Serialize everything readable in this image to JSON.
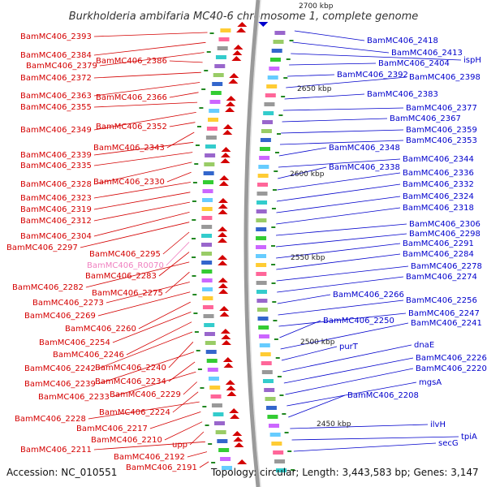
{
  "title": "Burkholderia ambifaria MC40-6 chromosome 1, complete genome",
  "footer": {
    "accession": "Accession: NC_010551",
    "summary": "Topology: circular; Length: 3,443,583 bp; Genes: 3,147"
  },
  "colors": {
    "minus_strand": "#d40000",
    "plus_strand": "#0000cc",
    "rna": "#f080c0",
    "backbone": "#888888"
  },
  "ticks": [
    "2700 kbp",
    "2650 kbp",
    "2600 kbp",
    "2550 kbp",
    "2500 kbp",
    "2450 kbp"
  ],
  "left_labels": [
    "BamMC406_2393",
    "BamMC406_2384",
    "BamMC406_2379",
    "BamMC406_2386",
    "BamMC406_2372",
    "BamMC406_2363",
    "BamMC406_2366",
    "BamMC406_2355",
    "BamMC406_2349",
    "BamMC406_2352",
    "BamMC406_2343",
    "BamMC406_2339",
    "BamMC406_2335",
    "BamMC406_2328",
    "BamMC406_2330",
    "BamMC406_2323",
    "BamMC406_2319",
    "BamMC406_2312",
    "BamMC406_2304",
    "BamMC406_2297",
    "BamMC406_2295",
    "BamMC406_R0070",
    "BamMC406_2283",
    "BamMC406_2282",
    "BamMC406_2275",
    "BamMC406_2273",
    "BamMC406_2269",
    "BamMC406_2260",
    "BamMC406_2254",
    "BamMC406_2246",
    "BamMC406_2242",
    "BamMC406_2240",
    "BamMC406_2239",
    "BamMC406_2234",
    "BamMC406_2233",
    "BamMC406_2229",
    "BamMC406_2224",
    "BamMC406_2228",
    "BamMC406_2217",
    "BamMC406_2210",
    "upp",
    "BamMC406_2211",
    "BamMC406_2192",
    "BamMC406_2191"
  ],
  "right_labels": [
    "BamMC406_2418",
    "BamMC406_2413",
    "ispH",
    "BamMC406_2404",
    "BamMC406_2392",
    "BamMC406_2398",
    "BamMC406_2383",
    "BamMC406_2377",
    "BamMC406_2367",
    "BamMC406_2359",
    "BamMC406_2353",
    "BamMC406_2348",
    "BamMC406_2344",
    "BamMC406_2338",
    "BamMC406_2336",
    "BamMC406_2332",
    "BamMC406_2324",
    "BamMC406_2318",
    "BamMC406_2306",
    "BamMC406_2298",
    "BamMC406_2291",
    "BamMC406_2284",
    "BamMC406_2278",
    "BamMC406_2274",
    "BamMC406_2266",
    "BamMC406_2256",
    "BamMC406_2247",
    "BamMC406_2250",
    "BamMC406_2241",
    "purT",
    "dnaE",
    "BamMC406_2226",
    "BamMC406_2220",
    "mgsA",
    "BamMC406_2208",
    "ilvH",
    "tpiA",
    "secG"
  ]
}
